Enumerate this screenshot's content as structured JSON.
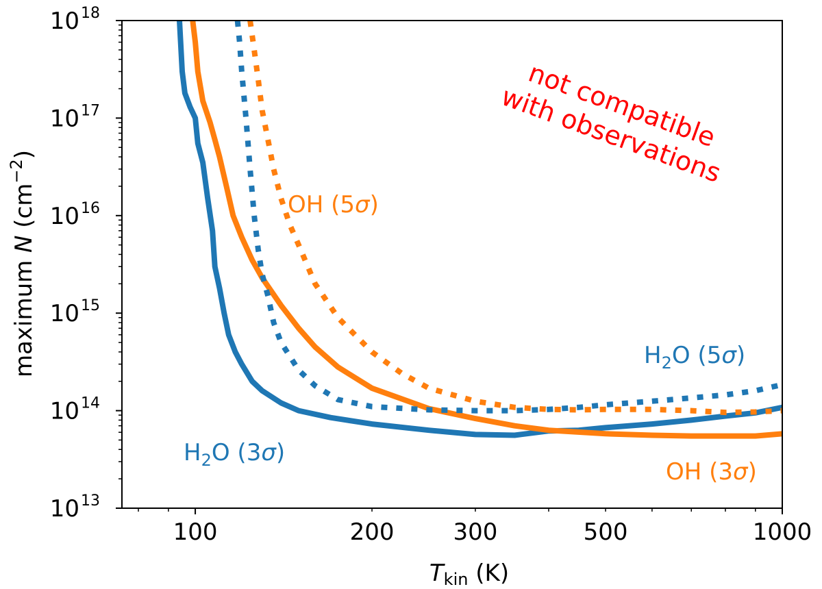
{
  "colors": {
    "h2o": "#1f77b4",
    "oh": "#ff7f0e",
    "note": "#ff0000",
    "axes": "#000000"
  },
  "chart_data": {
    "type": "line",
    "x_scale": "log",
    "y_scale": "log",
    "xlim": [
      75,
      1000
    ],
    "ylim": [
      10000000000000.0,
      1e+18
    ],
    "grid": false,
    "xlabel": {
      "italic": "T",
      "sub": "kin",
      "rest": " (K)"
    },
    "ylabel": {
      "prefix": "maximum ",
      "italic": "N",
      "rest": " (cm",
      "sup": "−2",
      "end": ")"
    },
    "x_ticks": [
      {
        "value": 100,
        "label": "100"
      },
      {
        "value": 200,
        "label": "200"
      },
      {
        "value": 300,
        "label": "300"
      },
      {
        "value": 500,
        "label": "500"
      },
      {
        "value": 1000,
        "label": "1000"
      }
    ],
    "y_ticks": [
      {
        "value": 10000000000000.0,
        "base": "10",
        "exp": "13"
      },
      {
        "value": 100000000000000.0,
        "base": "10",
        "exp": "14"
      },
      {
        "value": 1000000000000000.0,
        "base": "10",
        "exp": "15"
      },
      {
        "value": 1e+16,
        "base": "10",
        "exp": "16"
      },
      {
        "value": 1e+17,
        "base": "10",
        "exp": "17"
      },
      {
        "value": 1e+18,
        "base": "10",
        "exp": "18"
      }
    ],
    "series": [
      {
        "name": "H2O (3σ)",
        "species": "h2o",
        "style": "solid",
        "x": [
          94,
          95,
          96,
          98,
          100,
          101,
          103,
          105,
          107,
          108,
          110,
          112,
          114,
          117,
          120,
          125,
          130,
          140,
          150,
          170,
          200,
          250,
          300,
          350,
          400,
          450,
          500,
          600,
          700,
          800,
          900,
          1000
        ],
        "y": [
          1e+18,
          3e+17,
          1.8e+17,
          1.3e+17,
          1e+17,
          5.5e+16,
          3.5e+16,
          1.5e+16,
          7000000000000000.0,
          3000000000000000.0,
          1800000000000000.0,
          1000000000000000.0,
          600000000000000.0,
          400000000000000.0,
          300000000000000.0,
          200000000000000.0,
          160000000000000.0,
          120000000000000.0,
          100000000000000.0,
          85000000000000.0,
          73000000000000.0,
          63000000000000.0,
          57000000000000.0,
          56000000000000.0,
          62000000000000.0,
          63000000000000.0,
          67000000000000.0,
          73000000000000.0,
          80000000000000.0,
          88000000000000.0,
          95000000000000.0,
          108000000000000.0
        ]
      },
      {
        "name": "OH (3σ)",
        "species": "oh",
        "style": "solid",
        "x": [
          99,
          100,
          101,
          103,
          106,
          108,
          110,
          113,
          116,
          120,
          125,
          130,
          140,
          150,
          160,
          175,
          200,
          250,
          300,
          350,
          400,
          500,
          600,
          700,
          800,
          900,
          1000
        ],
        "y": [
          1e+18,
          6e+17,
          3e+17,
          1.5e+17,
          9e+16,
          6e+16,
          4e+16,
          2e+16,
          1e+16,
          6000000000000000.0,
          3500000000000000.0,
          2300000000000000.0,
          1200000000000000.0,
          700000000000000.0,
          450000000000000.0,
          280000000000000.0,
          170000000000000.0,
          105000000000000.0,
          83000000000000.0,
          70000000000000.0,
          63000000000000.0,
          58000000000000.0,
          56000000000000.0,
          55000000000000.0,
          55000000000000.0,
          55000000000000.0,
          58000000000000.0
        ]
      },
      {
        "name": "H2O (5σ)",
        "species": "h2o",
        "style": "dotted",
        "x": [
          118,
          119,
          120,
          122,
          124,
          126,
          128,
          130,
          133,
          136,
          140,
          150,
          160,
          175,
          200,
          250,
          300,
          350,
          400,
          450,
          500,
          600,
          700,
          800,
          900,
          1000
        ],
        "y": [
          1e+18,
          6e+17,
          3e+17,
          1e+17,
          3e+16,
          1e+16,
          4500000000000000.0,
          2500000000000000.0,
          1500000000000000.0,
          800000000000000.0,
          500000000000000.0,
          260000000000000.0,
          180000000000000.0,
          130000000000000.0,
          110000000000000.0,
          102000000000000.0,
          100000000000000.0,
          100000000000000.0,
          103000000000000.0,
          108000000000000.0,
          115000000000000.0,
          125000000000000.0,
          135000000000000.0,
          145000000000000.0,
          160000000000000.0,
          185000000000000.0
        ]
      },
      {
        "name": "OH (5σ)",
        "species": "oh",
        "style": "dotted",
        "x": [
          124,
          126,
          128,
          130,
          133,
          136,
          140,
          145,
          150,
          160,
          175,
          200,
          225,
          250,
          300,
          350,
          400,
          450,
          500,
          600,
          700,
          800,
          900,
          1000
        ],
        "y": [
          1e+18,
          5e+17,
          2.5e+17,
          1.2e+17,
          6e+16,
          3e+16,
          1.5e+16,
          8000000000000000.0,
          5000000000000000.0,
          2000000000000000.0,
          900000000000000.0,
          400000000000000.0,
          240000000000000.0,
          170000000000000.0,
          125000000000000.0,
          108000000000000.0,
          103000000000000.0,
          102000000000000.0,
          103000000000000.0,
          103000000000000.0,
          100000000000000.0,
          96000000000000.0,
          97000000000000.0,
          100000000000000.0
        ]
      }
    ],
    "annotations": [
      {
        "key": "oh5",
        "species": "oh",
        "text_main": "OH (5",
        "sigma": "σ",
        "text_end": ")"
      },
      {
        "key": "h2o5",
        "species": "h2o",
        "text_main": "H",
        "sub": "2",
        "text_mid": "O (5",
        "sigma": "σ",
        "text_end": ")"
      },
      {
        "key": "h2o3",
        "species": "h2o",
        "text_main": "H",
        "sub": "2",
        "text_mid": "O (3",
        "sigma": "σ",
        "text_end": ")"
      },
      {
        "key": "oh3",
        "species": "oh",
        "text_main": "OH (3",
        "sigma": "σ",
        "text_end": ")"
      }
    ],
    "note": {
      "line1": "not compatible",
      "line2": "with observations"
    }
  }
}
